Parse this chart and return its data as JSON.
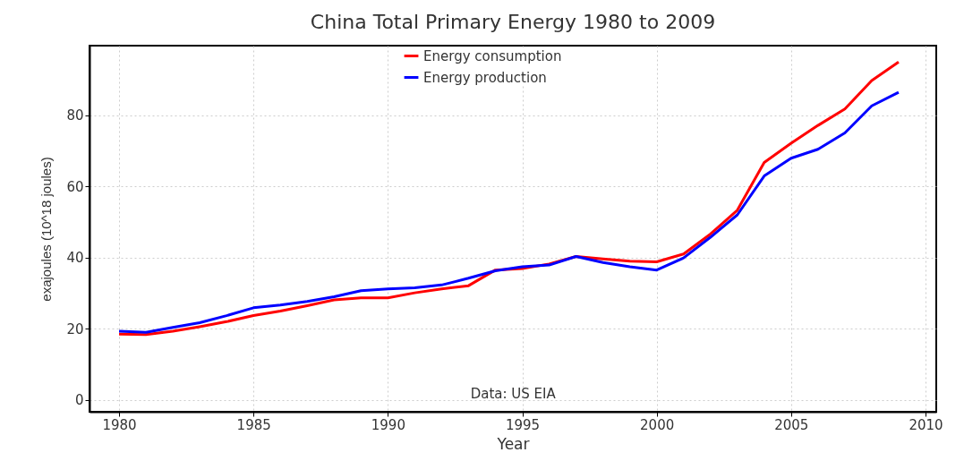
{
  "chart_data": {
    "type": "line",
    "title": "China Total Primary Energy 1980 to 2009",
    "xlabel": "Year",
    "ylabel": "exajoules (10^18 joules)",
    "x": [
      1980,
      1981,
      1982,
      1983,
      1984,
      1985,
      1986,
      1987,
      1988,
      1989,
      1990,
      1991,
      1992,
      1993,
      1994,
      1995,
      1996,
      1997,
      1998,
      1999,
      2000,
      2001,
      2002,
      2003,
      2004,
      2005,
      2006,
      2007,
      2008,
      2009
    ],
    "series": [
      {
        "name": "Energy consumption",
        "color": "#ff0000",
        "values": [
          18.5,
          18.4,
          19.3,
          20.6,
          22.0,
          23.7,
          25.0,
          26.5,
          28.1,
          28.7,
          28.7,
          30.1,
          31.2,
          32.1,
          36.5,
          36.9,
          38.2,
          40.3,
          39.6,
          39.0,
          38.8,
          41.0,
          46.6,
          53.3,
          66.7,
          72.1,
          77.1,
          81.7,
          89.7,
          94.9
        ]
      },
      {
        "name": "Energy production",
        "color": "#0000ff",
        "values": [
          19.3,
          19.0,
          20.4,
          21.7,
          23.7,
          25.9,
          26.7,
          27.7,
          29.0,
          30.7,
          31.2,
          31.5,
          32.3,
          34.2,
          36.3,
          37.4,
          37.9,
          40.3,
          38.6,
          37.4,
          36.5,
          39.9,
          45.7,
          52.0,
          62.9,
          67.9,
          70.4,
          75.0,
          82.6,
          86.4
        ]
      }
    ],
    "xlim": [
      1978.9,
      2010.4
    ],
    "xticks": [
      1980,
      1985,
      1990,
      1995,
      2000,
      2005,
      2010
    ],
    "ylim": [
      -3.3,
      99.5
    ],
    "yticks": [
      0,
      20,
      40,
      60,
      80
    ],
    "grid": true,
    "legend": "top",
    "line_style": "solid",
    "annotations": [
      "Data: US EIA"
    ]
  }
}
